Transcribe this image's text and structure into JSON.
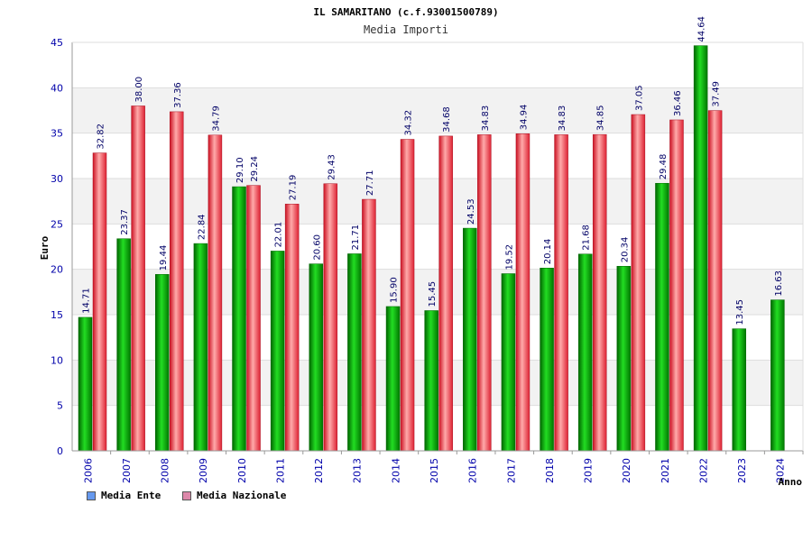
{
  "chart_data": {
    "type": "bar",
    "title": "IL SAMARITANO (c.f.93001500789)",
    "subtitle": "Media Importi",
    "xlabel": "Anno",
    "ylabel": "Euro",
    "ylim": [
      0,
      45
    ],
    "yticks": [
      0,
      5,
      10,
      15,
      20,
      25,
      30,
      35,
      40,
      45
    ],
    "grid": true,
    "legend_position": "bottom-left",
    "categories": [
      "2006",
      "2007",
      "2008",
      "2009",
      "2010",
      "2011",
      "2012",
      "2013",
      "2014",
      "2015",
      "2016",
      "2017",
      "2018",
      "2019",
      "2020",
      "2021",
      "2022",
      "2023",
      "2024"
    ],
    "series": [
      {
        "name": "Media Ente",
        "color": "#00aa00",
        "legend_color": "#6699ee",
        "values": [
          14.71,
          23.37,
          19.44,
          22.84,
          29.1,
          22.01,
          20.6,
          21.71,
          15.9,
          15.45,
          24.53,
          19.52,
          20.14,
          21.68,
          20.34,
          29.48,
          44.64,
          13.45,
          16.63
        ],
        "labels": [
          "14.71",
          "23.37",
          "19.44",
          "22.84",
          "29.10",
          "22.01",
          "20.60",
          "21.71",
          "15.90",
          "15.45",
          "24.53",
          "19.52",
          "20.14",
          "21.68",
          "20.34",
          "29.48",
          "44.64",
          "13.45",
          "16.63"
        ]
      },
      {
        "name": "Media Nazionale",
        "color": "#dd2233",
        "legend_color": "#dd88aa",
        "values": [
          32.82,
          38.0,
          37.36,
          34.79,
          29.24,
          27.19,
          29.43,
          27.71,
          34.32,
          34.68,
          34.83,
          34.94,
          34.83,
          34.85,
          37.05,
          36.46,
          37.49,
          null,
          null
        ],
        "labels": [
          "32.82",
          "38.00",
          "37.36",
          "34.79",
          "29.24",
          "27.19",
          "29.43",
          "27.71",
          "34.32",
          "34.68",
          "34.83",
          "34.94",
          "34.83",
          "34.85",
          "37.05",
          "36.46",
          "37.49",
          null,
          null
        ]
      }
    ]
  }
}
